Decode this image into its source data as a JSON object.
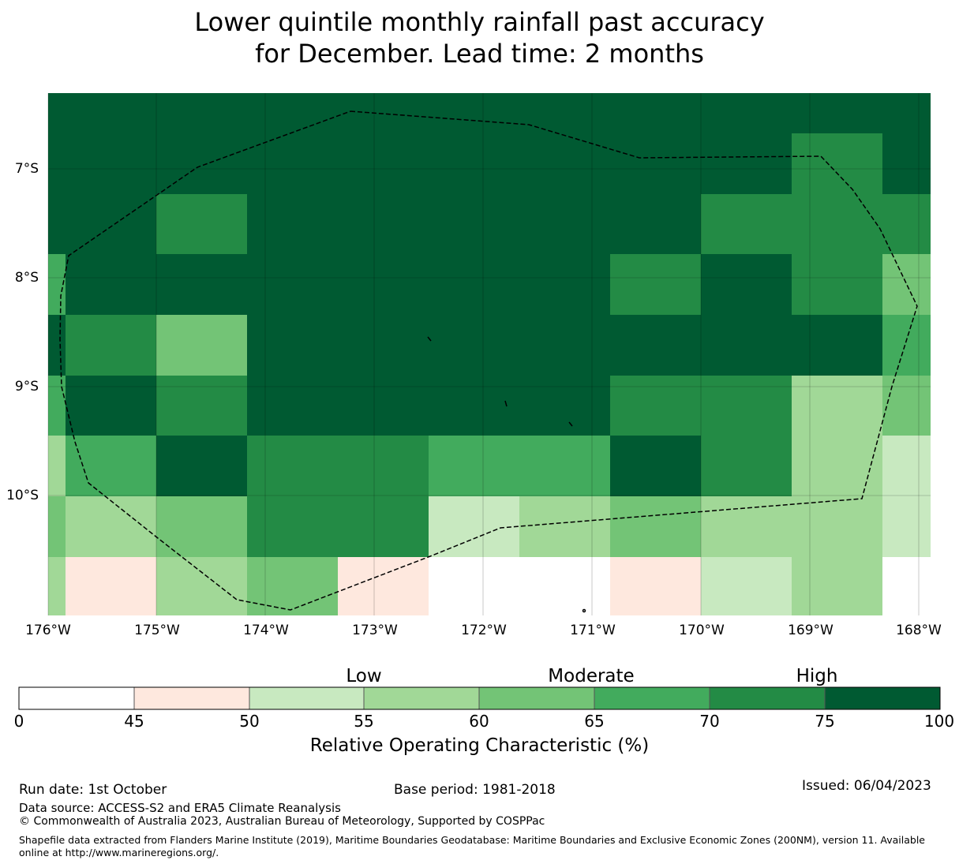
{
  "title_line1": "Lower quintile monthly rainfall past accuracy",
  "title_line2": "for December. Lead time: 2 months",
  "colors": {
    "b0": "#ffffff",
    "b1": "#fee8de",
    "b2": "#c8e9c0",
    "b3": "#a1d897",
    "b4": "#73c476",
    "b5": "#42ab5d",
    "b6": "#238b45",
    "b7": "#005a32"
  },
  "map": {
    "lat_labels": [
      "7°S",
      "8°S",
      "9°S",
      "10°S"
    ],
    "lon_labels": [
      "176°W",
      "175°W",
      "174°W",
      "173°W",
      "172°W",
      "171°W",
      "170°W",
      "169°W",
      "168°W"
    ],
    "grid_values": [
      [
        7,
        7,
        7,
        7,
        7,
        7,
        7,
        7,
        7,
        7,
        7
      ],
      [
        7,
        7,
        7,
        7,
        7,
        7,
        7,
        7,
        7,
        6,
        7
      ],
      [
        7,
        7,
        6,
        7,
        7,
        7,
        7,
        7,
        6,
        6,
        6
      ],
      [
        5,
        7,
        7,
        7,
        7,
        7,
        7,
        6,
        7,
        6,
        4
      ],
      [
        7,
        6,
        4,
        7,
        7,
        7,
        7,
        7,
        7,
        7,
        5
      ],
      [
        5,
        7,
        6,
        7,
        7,
        7,
        7,
        6,
        6,
        3,
        4
      ],
      [
        3,
        5,
        7,
        6,
        6,
        5,
        5,
        7,
        6,
        3,
        2
      ],
      [
        4,
        3,
        4,
        6,
        6,
        2,
        3,
        4,
        3,
        3,
        2
      ],
      [
        3,
        1,
        3,
        4,
        1,
        0,
        0,
        1,
        2,
        3,
        0
      ]
    ]
  },
  "colorbar": {
    "categories": [
      "Low",
      "Moderate",
      "High"
    ],
    "ticks": [
      "0",
      "45",
      "50",
      "55",
      "60",
      "65",
      "70",
      "75",
      "100"
    ],
    "title": "Relative Operating Characteristic (%)"
  },
  "footer": {
    "run_date": "Run date: 1st October",
    "base_period": "Base period: 1981-2018",
    "issued": "Issued: 06/04/2023",
    "data_source": "Data source: ACCESS-S2 and ERA5 Climate Reanalysis",
    "copyright": "© Commonwealth of Australia 2023, Australian Bureau of Meteorology, Supported by COSPPac",
    "shapefile": "Shapefile data extracted from Flanders Marine Institute (2019), Maritime Boundaries Geodatabase: Maritime Boundaries and Exclusive Economic Zones (200NM), version 11. Available online at http://www.marineregions.org/."
  }
}
